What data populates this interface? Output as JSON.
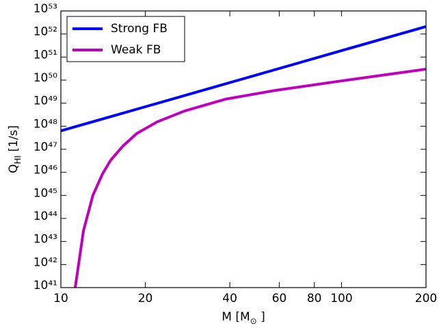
{
  "chart_data": {
    "type": "line",
    "xlabel": {
      "main": "M [M",
      "sub": "⊙",
      "rest": " ]"
    },
    "ylabel": {
      "main": "Q",
      "sub": "HI",
      "rest": " [1/s]"
    },
    "xscale": "log",
    "yscale": "log",
    "xlim": [
      10,
      200
    ],
    "ylim": [
      1e+41,
      1e+53
    ],
    "xticks": [
      10,
      20,
      40,
      60,
      80,
      100,
      200
    ],
    "yticks": [
      {
        "value": 1e+41,
        "label": "10⁴¹"
      },
      {
        "value": 1e+42,
        "label": "10⁴²"
      },
      {
        "value": 1e+43,
        "label": "10⁴³"
      },
      {
        "value": 1e+44,
        "label": "10⁴⁴"
      },
      {
        "value": 1e+45,
        "label": "10⁴⁵"
      },
      {
        "value": 1e+46,
        "label": "10⁴⁶"
      },
      {
        "value": 1e+47,
        "label": "10⁴⁷"
      },
      {
        "value": 1e+48,
        "label": "10⁴⁸"
      },
      {
        "value": 1e+49,
        "label": "10⁴⁹"
      },
      {
        "value": 1e+50,
        "label": "10⁵⁰"
      },
      {
        "value": 1e+51,
        "label": "10⁵¹"
      },
      {
        "value": 1e+52,
        "label": "10⁵²"
      },
      {
        "value": 1e+53,
        "label": "10⁵³"
      }
    ],
    "legend": "upper left",
    "series": [
      {
        "name": "Strong FB",
        "color": "#0000ff",
        "x": [
          10,
          20,
          40,
          60,
          100,
          200
        ],
        "values": [
          6.3e+47,
          7e+48,
          7.8e+49,
          3.2e+50,
          1.9e+51,
          2.1e+52
        ]
      },
      {
        "name": "Weak FB",
        "color": "#bf00bf",
        "x": [
          11.25,
          12.04,
          13.01,
          14.07,
          15.06,
          16.66,
          18.63,
          22.06,
          27.6,
          38.7,
          57.4,
          100.3,
          200
        ],
        "values": [
          1e+41,
          2.95e+43,
          1.02e+45,
          8.5e+45,
          3.4e+46,
          1.4e+47,
          4.8e+47,
          1.55e+48,
          4.6e+48,
          1.5e+49,
          3.5e+49,
          9.3e+49,
          3e+50
        ]
      }
    ]
  }
}
